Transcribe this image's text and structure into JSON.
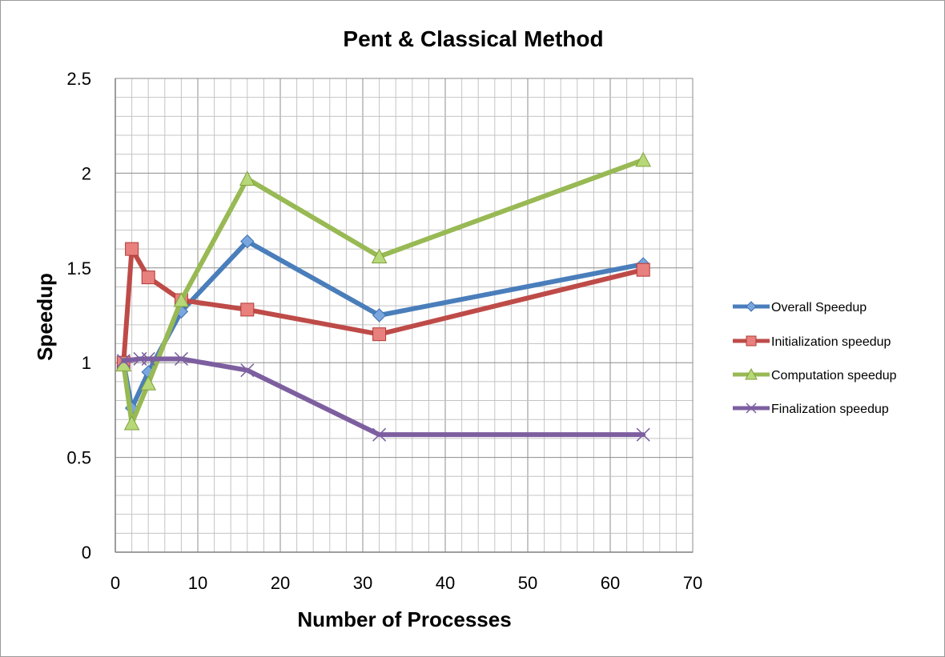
{
  "chart_data": {
    "type": "line",
    "title": "Pent & Classical Method",
    "xlabel": "Number of Processes",
    "ylabel": "Speedup",
    "xlim": [
      0,
      70
    ],
    "ylim": [
      0,
      2.5
    ],
    "x_ticks": [
      0,
      10,
      20,
      30,
      40,
      50,
      60,
      70
    ],
    "y_ticks": [
      0,
      0.5,
      1,
      1.5,
      2,
      2.5
    ],
    "y_tick_labels": [
      "0",
      "0.5",
      "1",
      "1.5",
      "2",
      "2.5"
    ],
    "grid": "major and minor",
    "legend_position": "right",
    "x": [
      1,
      2,
      4,
      8,
      16,
      32,
      64
    ],
    "series": [
      {
        "name": "Overall Speedup",
        "marker": "diamond",
        "color": "#4a7ebb",
        "values": [
          1.0,
          0.76,
          0.95,
          1.27,
          1.64,
          1.25,
          1.52
        ]
      },
      {
        "name": "Initialization speedup",
        "marker": "square",
        "color": "#be4b48",
        "values": [
          1.0,
          1.6,
          1.45,
          1.33,
          1.28,
          1.15,
          1.49
        ]
      },
      {
        "name": "Computation speedup",
        "marker": "triangle",
        "color": "#98b954",
        "values": [
          0.99,
          0.68,
          0.89,
          1.33,
          1.97,
          1.56,
          2.07
        ]
      },
      {
        "name": "Finalization speedup",
        "marker": "x",
        "color": "#7d5fa0",
        "x": [
          1,
          3,
          4,
          8,
          16,
          32,
          64
        ],
        "values": [
          1.01,
          1.02,
          1.02,
          1.02,
          0.96,
          0.62,
          0.62
        ]
      }
    ]
  }
}
